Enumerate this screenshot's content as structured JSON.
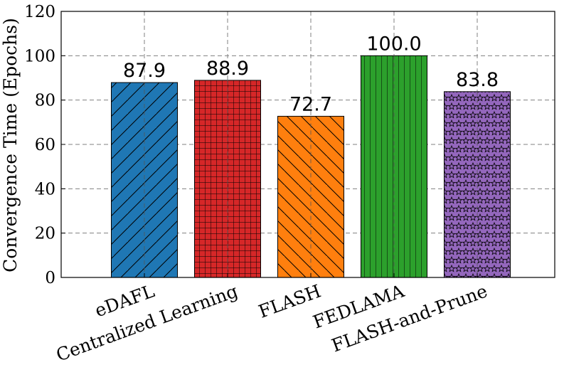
{
  "chart_data": {
    "type": "bar",
    "title": "",
    "xlabel": "",
    "ylabel": "Convergence Time (Epochs)",
    "ylim": [
      0,
      120
    ],
    "yticks": [
      0,
      20,
      40,
      60,
      80,
      100,
      120
    ],
    "grid": true,
    "categories": [
      "eDAFL",
      "Centralized Learning",
      "FLASH",
      "FEDLAMA",
      "FLASH-and-Prune"
    ],
    "values": [
      87.9,
      88.9,
      72.7,
      100.0,
      83.8
    ],
    "value_labels": [
      "87.9",
      "88.9",
      "72.7",
      "100.0",
      "83.8"
    ],
    "colors": [
      "#1f77b4",
      "#d62728",
      "#ff7f0e",
      "#2ca02c",
      "#9467bd"
    ],
    "hatches": [
      "diagonal-up",
      "grid",
      "diagonal-down",
      "vertical",
      "stars"
    ]
  }
}
